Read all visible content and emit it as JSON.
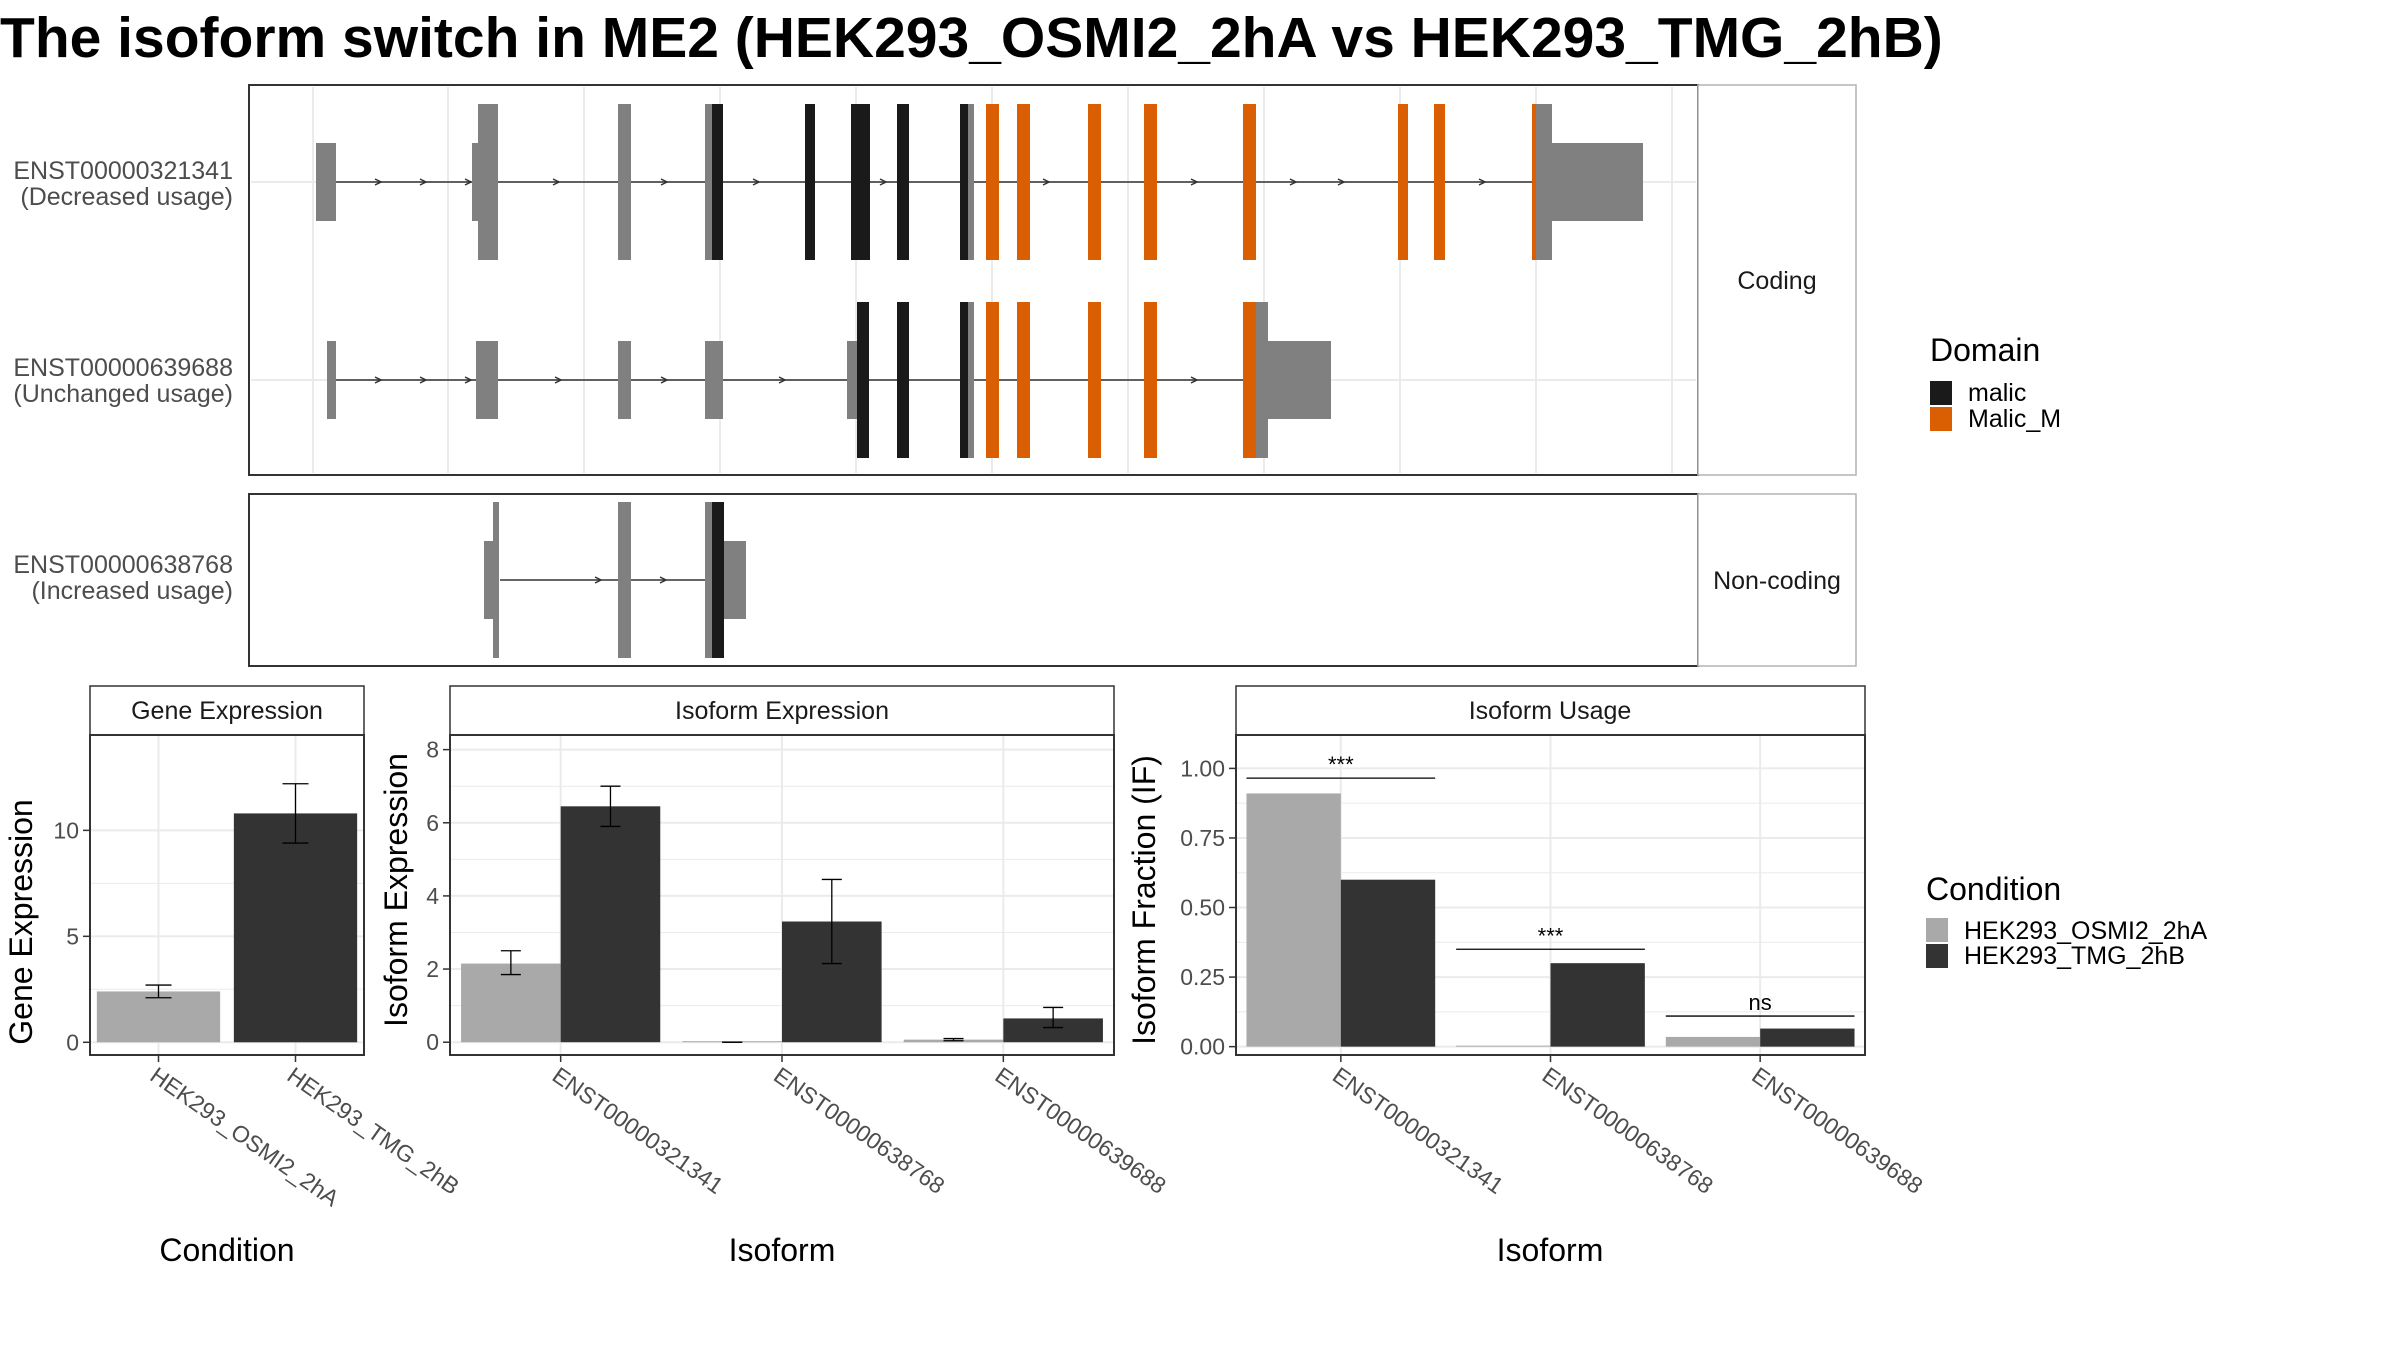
{
  "title": "The isoform switch in ME2 (HEK293_OSMI2_2hA vs HEK293_TMG_2hB)",
  "colors": {
    "exon": "#808080",
    "malic": "#1a1a1a",
    "malic_m": "#d95f02",
    "cond_a": "#a9a9a9",
    "cond_b": "#333333",
    "grid": "#ebebeb",
    "panel_border": "#333333",
    "strip_fill": "#ffffff",
    "strip_border": "#b3b3b3"
  },
  "structure": {
    "panels": [
      {
        "label": "Coding",
        "transcripts": [
          {
            "id": "ENST00000321341",
            "note": "(Decreased usage)"
          },
          {
            "id": "ENST00000639688",
            "note": "(Unchanged usage)"
          }
        ]
      },
      {
        "label": "Non-coding",
        "transcripts": [
          {
            "id": "ENST00000638768",
            "note": "(Increased usage)"
          }
        ]
      }
    ]
  },
  "legend_domain": {
    "title": "Domain",
    "items": [
      {
        "label": "malic",
        "color": "#1a1a1a"
      },
      {
        "label": "Malic_M",
        "color": "#d95f02"
      }
    ]
  },
  "legend_condition": {
    "title": "Condition",
    "items": [
      {
        "label": "HEK293_OSMI2_2hA",
        "color": "#a9a9a9"
      },
      {
        "label": "HEK293_TMG_2hB",
        "color": "#333333"
      }
    ]
  },
  "chart_data": [
    {
      "type": "bar",
      "strip": "Gene Expression",
      "xlabel": "Condition",
      "ylabel": "Gene Expression",
      "categories": [
        "HEK293_OSMI2_2hA",
        "HEK293_TMG_2hB"
      ],
      "values": [
        2.4,
        10.8
      ],
      "error_low": [
        2.1,
        9.4
      ],
      "error_high": [
        2.7,
        12.2
      ],
      "ylim": [
        -0.6,
        14.5
      ],
      "yticks": [
        0,
        5,
        10
      ],
      "ytick_labels": [
        "0",
        "5",
        "10"
      ]
    },
    {
      "type": "bar",
      "strip": "Isoform Expression",
      "xlabel": "Isoform",
      "ylabel": "Isoform Expression",
      "categories": [
        "ENST00000321341",
        "ENST00000638768",
        "ENST00000639688"
      ],
      "series": [
        {
          "name": "HEK293_OSMI2_2hA",
          "values": [
            2.15,
            0.0,
            0.07
          ],
          "error_low": [
            1.85,
            0.0,
            0.04
          ],
          "error_high": [
            2.5,
            0.0,
            0.1
          ]
        },
        {
          "name": "HEK293_TMG_2hB",
          "values": [
            6.45,
            3.3,
            0.65
          ],
          "error_low": [
            5.9,
            2.15,
            0.4
          ],
          "error_high": [
            7.0,
            4.45,
            0.95
          ]
        }
      ],
      "ylim": [
        -0.35,
        8.4
      ],
      "yticks": [
        0,
        2,
        4,
        6,
        8
      ],
      "ytick_labels": [
        "0",
        "2",
        "4",
        "6",
        "8"
      ]
    },
    {
      "type": "bar",
      "strip": "Isoform Usage",
      "xlabel": "Isoform",
      "ylabel": "Isoform Fraction (IF)",
      "categories": [
        "ENST00000321341",
        "ENST00000638768",
        "ENST00000639688"
      ],
      "series": [
        {
          "name": "HEK293_OSMI2_2hA",
          "values": [
            0.91,
            0.0,
            0.035
          ]
        },
        {
          "name": "HEK293_TMG_2hB",
          "values": [
            0.6,
            0.3,
            0.065
          ]
        }
      ],
      "significance": [
        {
          "label": "***",
          "y": 0.965
        },
        {
          "label": "***",
          "y": 0.35
        },
        {
          "label": "ns",
          "y": 0.11
        }
      ],
      "ylim": [
        -0.03,
        1.12
      ],
      "yticks": [
        0,
        0.25,
        0.5,
        0.75,
        1
      ],
      "ytick_labels": [
        "0.00",
        "0.25",
        "0.50",
        "0.75",
        "1.00"
      ]
    }
  ]
}
